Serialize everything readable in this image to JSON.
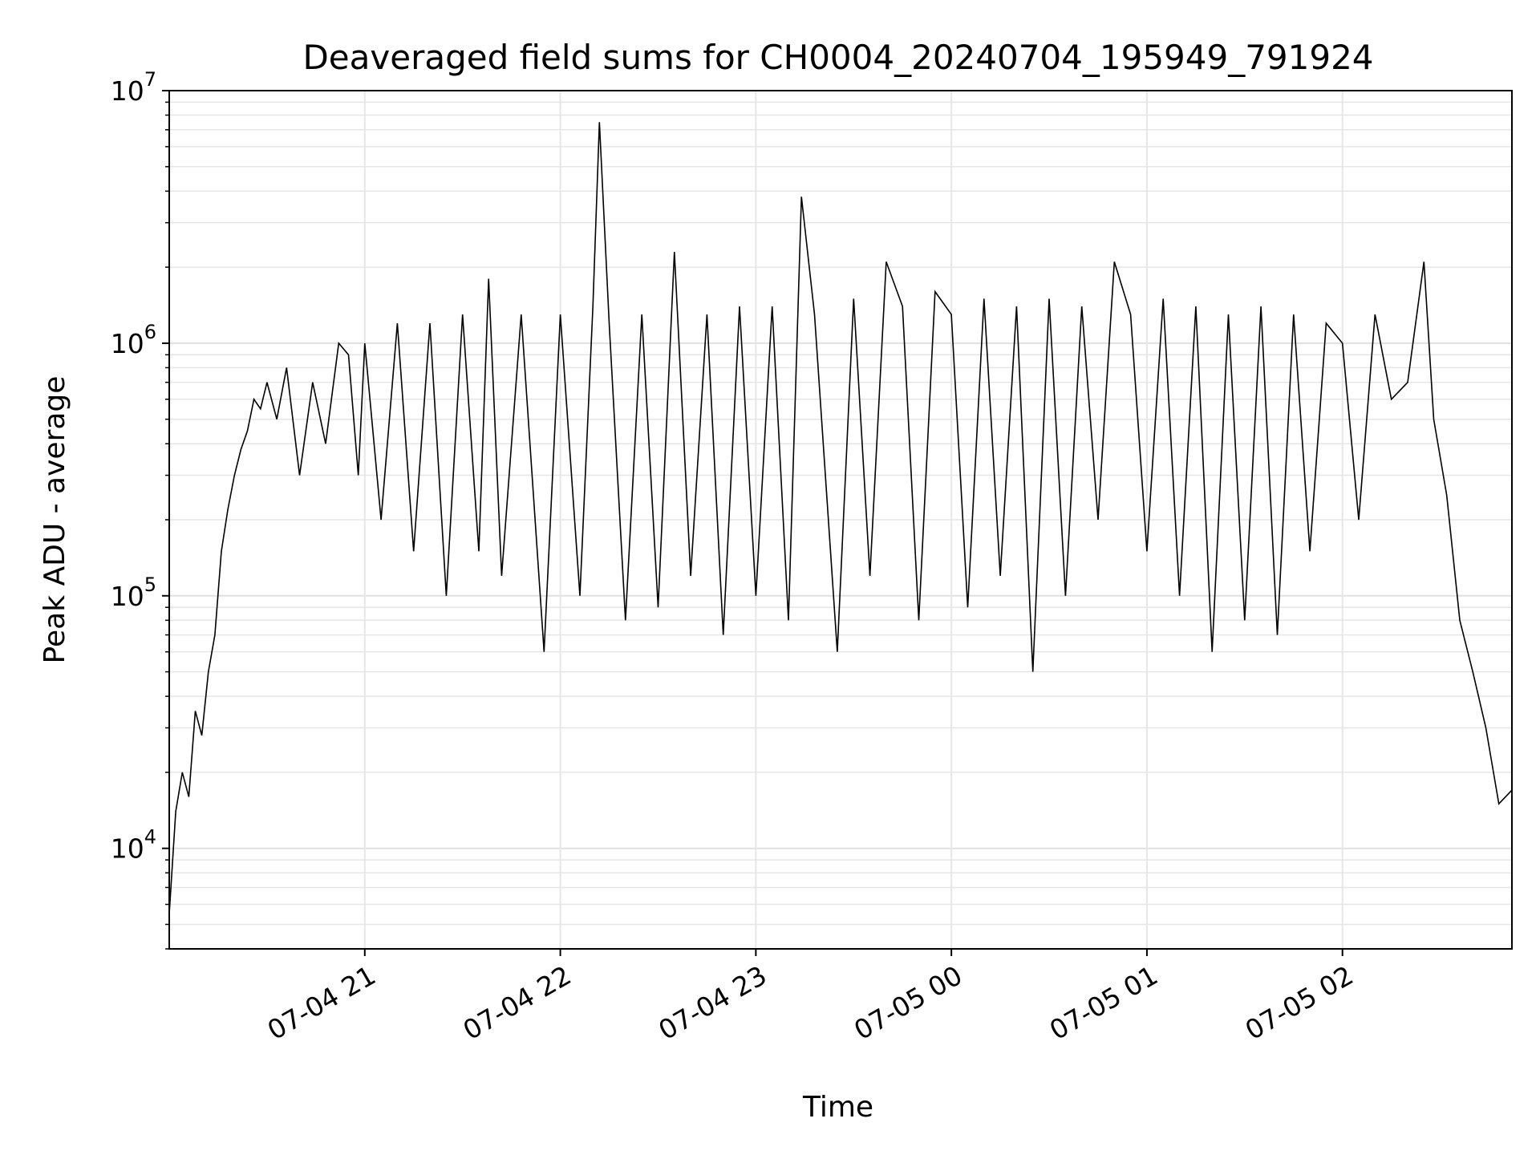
{
  "chart_data": {
    "type": "line",
    "title": "Deaveraged field sums for CH0004_20240704_195949_791924",
    "xlabel": "Time",
    "ylabel": "Peak ADU - average",
    "yscale": "log",
    "ylim": [
      4000,
      10000000
    ],
    "xlim": [
      "2024-07-04 20:00",
      "2024-07-05 02:52"
    ],
    "grid": true,
    "line_color": "#000000",
    "y_ticks": [
      {
        "base": "10",
        "exp": "4",
        "value": 10000
      },
      {
        "base": "10",
        "exp": "5",
        "value": 100000
      },
      {
        "base": "10",
        "exp": "6",
        "value": 1000000
      },
      {
        "base": "10",
        "exp": "7",
        "value": 10000000
      }
    ],
    "x_ticks": [
      {
        "label": "07-04 21",
        "value": "2024-07-04 21:00"
      },
      {
        "label": "07-04 22",
        "value": "2024-07-04 22:00"
      },
      {
        "label": "07-04 23",
        "value": "2024-07-04 23:00"
      },
      {
        "label": "07-05 00",
        "value": "2024-07-05 00:00"
      },
      {
        "label": "07-05 01",
        "value": "2024-07-05 01:00"
      },
      {
        "label": "07-05 02",
        "value": "2024-07-05 02:00"
      }
    ],
    "series": [
      {
        "x": [
          "2024-07-04 20:00",
          "2024-07-04 20:02",
          "2024-07-04 20:04",
          "2024-07-04 20:06",
          "2024-07-04 20:08",
          "2024-07-04 20:10",
          "2024-07-04 20:12",
          "2024-07-04 20:14",
          "2024-07-04 20:16",
          "2024-07-04 20:18",
          "2024-07-04 20:20",
          "2024-07-04 20:22",
          "2024-07-04 20:24",
          "2024-07-04 20:26",
          "2024-07-04 20:28",
          "2024-07-04 20:30",
          "2024-07-04 20:33",
          "2024-07-04 20:36",
          "2024-07-04 20:40",
          "2024-07-04 20:44",
          "2024-07-04 20:48",
          "2024-07-04 20:52",
          "2024-07-04 20:55",
          "2024-07-04 20:58",
          "2024-07-04 21:00",
          "2024-07-04 21:05",
          "2024-07-04 21:10",
          "2024-07-04 21:15",
          "2024-07-04 21:20",
          "2024-07-04 21:25",
          "2024-07-04 21:30",
          "2024-07-04 21:35",
          "2024-07-04 21:38",
          "2024-07-04 21:42",
          "2024-07-04 21:48",
          "2024-07-04 21:55",
          "2024-07-04 22:00",
          "2024-07-04 22:06",
          "2024-07-04 22:10",
          "2024-07-04 22:12",
          "2024-07-04 22:15",
          "2024-07-04 22:20",
          "2024-07-04 22:25",
          "2024-07-04 22:30",
          "2024-07-04 22:35",
          "2024-07-04 22:40",
          "2024-07-04 22:45",
          "2024-07-04 22:50",
          "2024-07-04 22:55",
          "2024-07-04 23:00",
          "2024-07-04 23:05",
          "2024-07-04 23:10",
          "2024-07-04 23:14",
          "2024-07-04 23:18",
          "2024-07-04 23:25",
          "2024-07-04 23:30",
          "2024-07-04 23:35",
          "2024-07-04 23:40",
          "2024-07-04 23:45",
          "2024-07-04 23:50",
          "2024-07-04 23:55",
          "2024-07-05 00:00",
          "2024-07-05 00:05",
          "2024-07-05 00:10",
          "2024-07-05 00:15",
          "2024-07-05 00:20",
          "2024-07-05 00:25",
          "2024-07-05 00:30",
          "2024-07-05 00:35",
          "2024-07-05 00:40",
          "2024-07-05 00:45",
          "2024-07-05 00:50",
          "2024-07-05 00:55",
          "2024-07-05 01:00",
          "2024-07-05 01:05",
          "2024-07-05 01:10",
          "2024-07-05 01:15",
          "2024-07-05 01:20",
          "2024-07-05 01:25",
          "2024-07-05 01:30",
          "2024-07-05 01:35",
          "2024-07-05 01:40",
          "2024-07-05 01:45",
          "2024-07-05 01:50",
          "2024-07-05 01:55",
          "2024-07-05 02:00",
          "2024-07-05 02:05",
          "2024-07-05 02:10",
          "2024-07-05 02:15",
          "2024-07-05 02:20",
          "2024-07-05 02:25",
          "2024-07-05 02:28",
          "2024-07-05 02:32",
          "2024-07-05 02:36",
          "2024-07-05 02:40",
          "2024-07-05 02:44",
          "2024-07-05 02:48",
          "2024-07-05 02:52"
        ],
        "values": [
          5500,
          14000,
          20000,
          16000,
          35000,
          28000,
          50000,
          70000,
          150000,
          220000,
          300000,
          380000,
          450000,
          600000,
          550000,
          700000,
          500000,
          800000,
          300000,
          700000,
          400000,
          1000000,
          900000,
          300000,
          1000000,
          200000,
          1200000,
          150000,
          1200000,
          100000,
          1300000,
          150000,
          1800000,
          120000,
          1300000,
          60000,
          1300000,
          100000,
          1400000,
          7500000,
          1200000,
          80000,
          1300000,
          90000,
          2300000,
          120000,
          1300000,
          70000,
          1400000,
          100000,
          1400000,
          80000,
          3800000,
          1300000,
          60000,
          1500000,
          120000,
          2100000,
          1400000,
          80000,
          1600000,
          1300000,
          90000,
          1500000,
          120000,
          1400000,
          50000,
          1500000,
          100000,
          1400000,
          200000,
          2100000,
          1300000,
          150000,
          1500000,
          100000,
          1400000,
          60000,
          1300000,
          80000,
          1400000,
          70000,
          1300000,
          150000,
          1200000,
          1000000,
          200000,
          1300000,
          600000,
          700000,
          2100000,
          500000,
          250000,
          80000,
          50000,
          30000,
          15000,
          17000
        ]
      }
    ]
  }
}
